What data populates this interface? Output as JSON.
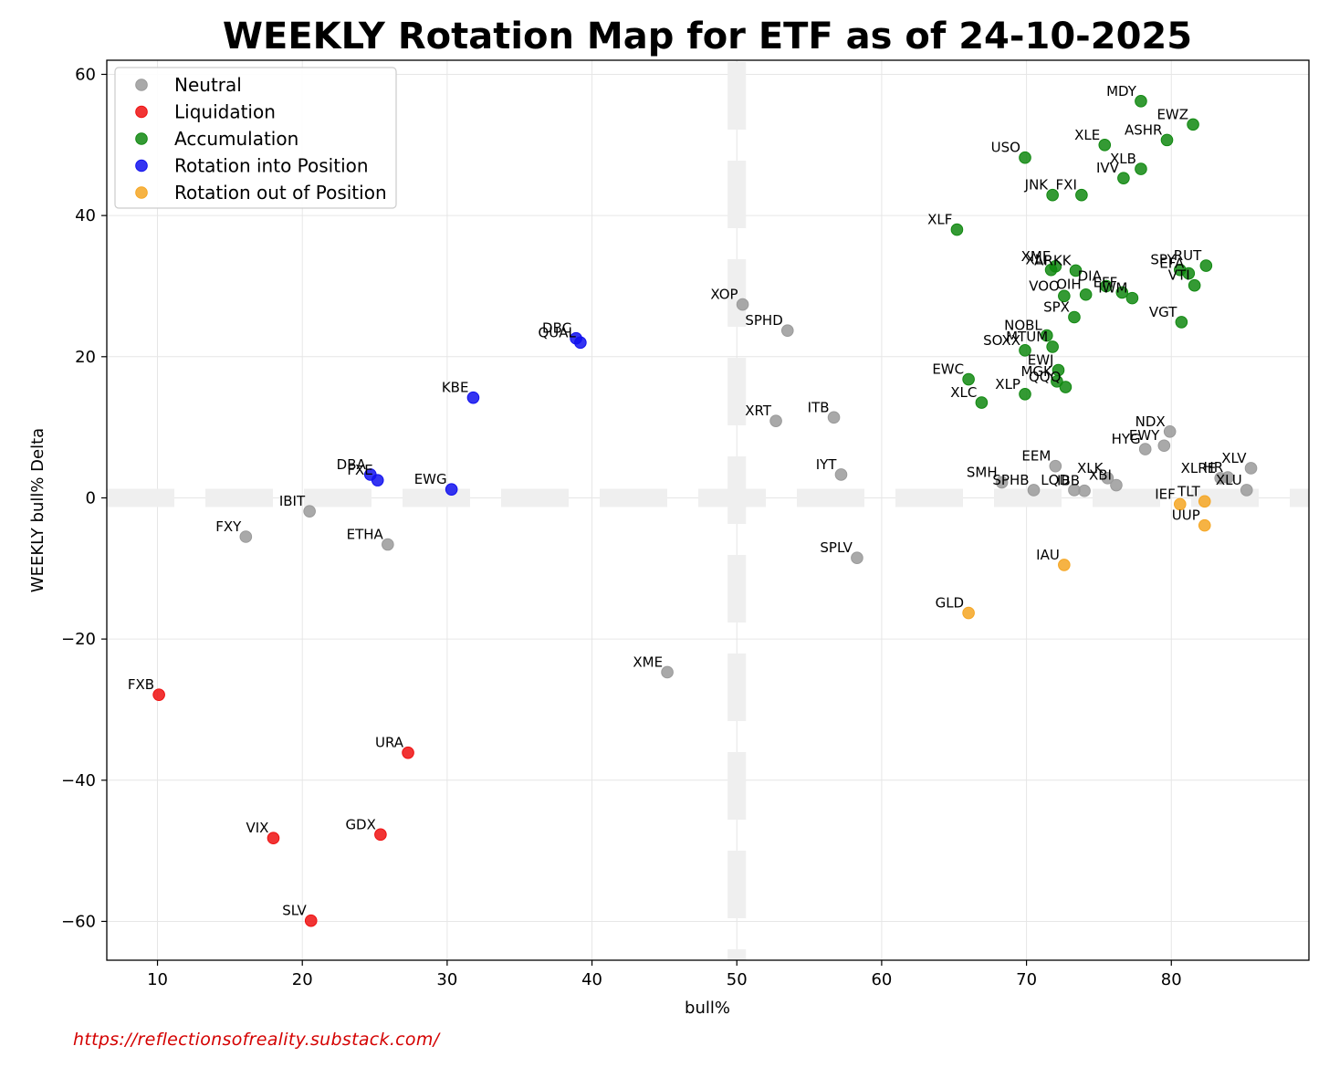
{
  "source_url": "https://reflectionsofreality.substack.com/",
  "colors": {
    "Neutral": "#9a9a9a",
    "Liquidation": "#ee1111",
    "Accumulation": "#118811",
    "Rotation into Position": "#1111ee",
    "Rotation out of Position": "#f5a623"
  },
  "chart_data": {
    "type": "scatter",
    "title": "WEEKLY Rotation Map for ETF as of 24-10-2025",
    "xlabel": "bull%",
    "ylabel": "WEEKLY bull% Delta",
    "xlim": [
      6.5,
      89.5
    ],
    "ylim": [
      -65.5,
      62
    ],
    "xticks": [
      10,
      20,
      30,
      40,
      50,
      60,
      70,
      80
    ],
    "yticks": [
      60,
      40,
      20,
      0,
      -20,
      -40,
      -60
    ],
    "ytick_labels": [
      "60",
      "40",
      "20",
      "0",
      "−20",
      "−40",
      "−60"
    ],
    "grid": true,
    "legend_position": "top-left",
    "legend": [
      "Neutral",
      "Liquidation",
      "Accumulation",
      "Rotation into Position",
      "Rotation out of Position"
    ],
    "reference_lines": {
      "x": 50,
      "y": 0
    },
    "points": [
      {
        "label": "MDY",
        "x": 77.9,
        "y": 56.2,
        "category": "Accumulation"
      },
      {
        "label": "EWZ",
        "x": 81.5,
        "y": 52.9,
        "category": "Accumulation"
      },
      {
        "label": "ASHR",
        "x": 79.7,
        "y": 50.7,
        "category": "Accumulation"
      },
      {
        "label": "XLE",
        "x": 75.4,
        "y": 50.0,
        "category": "Accumulation"
      },
      {
        "label": "USO",
        "x": 69.9,
        "y": 48.2,
        "category": "Accumulation"
      },
      {
        "label": "XLB",
        "x": 77.9,
        "y": 46.6,
        "category": "Accumulation"
      },
      {
        "label": "IVV",
        "x": 76.7,
        "y": 45.3,
        "category": "Accumulation"
      },
      {
        "label": "JNK",
        "x": 71.8,
        "y": 42.9,
        "category": "Accumulation"
      },
      {
        "label": "FXI",
        "x": 73.8,
        "y": 42.9,
        "category": "Accumulation"
      },
      {
        "label": "XLF",
        "x": 65.2,
        "y": 38.0,
        "category": "Accumulation"
      },
      {
        "label": "XLI",
        "x": 71.7,
        "y": 32.3,
        "category": "Accumulation"
      },
      {
        "label": "XME",
        "x": 72.0,
        "y": 32.8,
        "category": "Accumulation"
      },
      {
        "label": "ARKK",
        "x": 73.4,
        "y": 32.2,
        "category": "Accumulation"
      },
      {
        "label": "RUT",
        "x": 82.4,
        "y": 32.9,
        "category": "Accumulation"
      },
      {
        "label": "SPY",
        "x": 80.6,
        "y": 32.3,
        "category": "Accumulation"
      },
      {
        "label": "EFA",
        "x": 81.2,
        "y": 31.8,
        "category": "Accumulation"
      },
      {
        "label": "VTI",
        "x": 81.6,
        "y": 30.1,
        "category": "Accumulation"
      },
      {
        "label": "DIA",
        "x": 75.5,
        "y": 30.0,
        "category": "Accumulation"
      },
      {
        "label": "EFF",
        "x": 76.6,
        "y": 29.1,
        "category": "Accumulation"
      },
      {
        "label": "IWM",
        "x": 77.3,
        "y": 28.3,
        "category": "Accumulation"
      },
      {
        "label": "OIH",
        "x": 74.1,
        "y": 28.8,
        "category": "Accumulation"
      },
      {
        "label": "VOO",
        "x": 72.6,
        "y": 28.6,
        "category": "Accumulation"
      },
      {
        "label": "SPX",
        "x": 73.3,
        "y": 25.6,
        "category": "Accumulation"
      },
      {
        "label": "VGT",
        "x": 80.7,
        "y": 24.9,
        "category": "Accumulation"
      },
      {
        "label": "NOBL",
        "x": 71.4,
        "y": 23.0,
        "category": "Accumulation"
      },
      {
        "label": "MTUM",
        "x": 71.8,
        "y": 21.4,
        "category": "Accumulation"
      },
      {
        "label": "SOXX",
        "x": 69.9,
        "y": 20.9,
        "category": "Accumulation"
      },
      {
        "label": "EWJ",
        "x": 72.2,
        "y": 18.1,
        "category": "Accumulation"
      },
      {
        "label": "MGK",
        "x": 72.1,
        "y": 16.5,
        "category": "Accumulation"
      },
      {
        "label": "QQQ",
        "x": 72.7,
        "y": 15.7,
        "category": "Accumulation"
      },
      {
        "label": "EWC",
        "x": 66.0,
        "y": 16.8,
        "category": "Accumulation"
      },
      {
        "label": "XLP",
        "x": 69.9,
        "y": 14.7,
        "category": "Accumulation"
      },
      {
        "label": "XLC",
        "x": 66.9,
        "y": 13.5,
        "category": "Accumulation"
      },
      {
        "label": "DBC",
        "x": 38.9,
        "y": 22.6,
        "category": "Rotation into Position"
      },
      {
        "label": "QUAL",
        "x": 39.2,
        "y": 22.0,
        "category": "Rotation into Position"
      },
      {
        "label": "KBE",
        "x": 31.8,
        "y": 14.2,
        "category": "Rotation into Position"
      },
      {
        "label": "DBA",
        "x": 24.7,
        "y": 3.3,
        "category": "Rotation into Position"
      },
      {
        "label": "FXE",
        "x": 25.2,
        "y": 2.5,
        "category": "Rotation into Position"
      },
      {
        "label": "EWG",
        "x": 30.3,
        "y": 1.2,
        "category": "Rotation into Position"
      },
      {
        "label": "XOP",
        "x": 50.4,
        "y": 27.4,
        "category": "Neutral"
      },
      {
        "label": "SPHD",
        "x": 53.5,
        "y": 23.7,
        "category": "Neutral"
      },
      {
        "label": "XRT",
        "x": 52.7,
        "y": 10.9,
        "category": "Neutral"
      },
      {
        "label": "ITB",
        "x": 56.7,
        "y": 11.4,
        "category": "Neutral"
      },
      {
        "label": "IYT",
        "x": 57.2,
        "y": 3.3,
        "category": "Neutral"
      },
      {
        "label": "SPLV",
        "x": 58.3,
        "y": -8.5,
        "category": "Neutral"
      },
      {
        "label": "NDX",
        "x": 79.9,
        "y": 9.4,
        "category": "Neutral"
      },
      {
        "label": "HYG",
        "x": 78.2,
        "y": 6.9,
        "category": "Neutral"
      },
      {
        "label": "EWY",
        "x": 79.5,
        "y": 7.4,
        "category": "Neutral"
      },
      {
        "label": "EEM",
        "x": 72.0,
        "y": 4.5,
        "category": "Neutral"
      },
      {
        "label": "SMH",
        "x": 68.3,
        "y": 2.2,
        "category": "Neutral"
      },
      {
        "label": "SPHB",
        "x": 70.5,
        "y": 1.1,
        "category": "Neutral"
      },
      {
        "label": "LQD",
        "x": 73.3,
        "y": 1.1,
        "category": "Neutral"
      },
      {
        "label": "IBB",
        "x": 74.0,
        "y": 1.0,
        "category": "Neutral"
      },
      {
        "label": "XLK",
        "x": 75.6,
        "y": 2.8,
        "category": "Neutral"
      },
      {
        "label": "XBI",
        "x": 76.2,
        "y": 1.8,
        "category": "Neutral"
      },
      {
        "label": "XLV",
        "x": 85.5,
        "y": 4.2,
        "category": "Neutral"
      },
      {
        "label": "XLRE",
        "x": 83.4,
        "y": 2.8,
        "category": "Neutral"
      },
      {
        "label": "HR",
        "x": 83.9,
        "y": 2.9,
        "category": "Neutral"
      },
      {
        "label": "XLU",
        "x": 85.2,
        "y": 1.1,
        "category": "Neutral"
      },
      {
        "label": "IBIT",
        "x": 20.5,
        "y": -1.9,
        "category": "Neutral"
      },
      {
        "label": "FXY",
        "x": 16.1,
        "y": -5.5,
        "category": "Neutral"
      },
      {
        "label": "ETHA",
        "x": 25.9,
        "y": -6.6,
        "category": "Neutral"
      },
      {
        "label": "XME",
        "x": 45.2,
        "y": -24.7,
        "category": "Neutral"
      },
      {
        "label": "IEF",
        "x": 80.6,
        "y": -0.9,
        "category": "Rotation out of Position"
      },
      {
        "label": "TLT",
        "x": 82.3,
        "y": -0.5,
        "category": "Rotation out of Position"
      },
      {
        "label": "UUP",
        "x": 82.3,
        "y": -3.9,
        "category": "Rotation out of Position"
      },
      {
        "label": "IAU",
        "x": 72.6,
        "y": -9.5,
        "category": "Rotation out of Position"
      },
      {
        "label": "GLD",
        "x": 66.0,
        "y": -16.3,
        "category": "Rotation out of Position"
      },
      {
        "label": "FXB",
        "x": 10.1,
        "y": -27.9,
        "category": "Liquidation"
      },
      {
        "label": "URA",
        "x": 27.3,
        "y": -36.1,
        "category": "Liquidation"
      },
      {
        "label": "VIX",
        "x": 18.0,
        "y": -48.2,
        "category": "Liquidation"
      },
      {
        "label": "GDX",
        "x": 25.4,
        "y": -47.7,
        "category": "Liquidation"
      },
      {
        "label": "SLV",
        "x": 20.6,
        "y": -59.9,
        "category": "Liquidation"
      }
    ]
  }
}
